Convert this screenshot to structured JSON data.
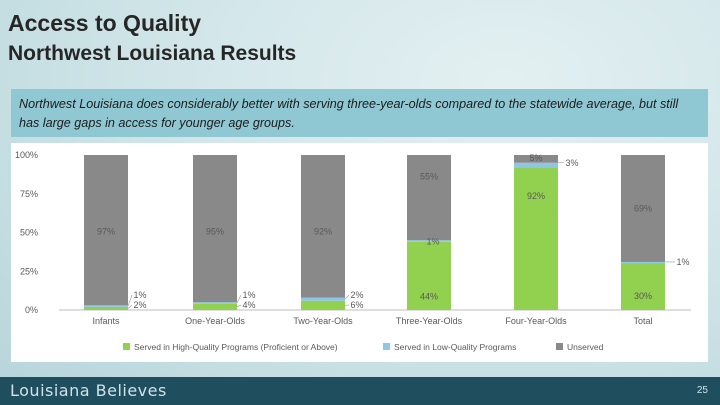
{
  "header": {
    "title": "Access to Quality",
    "subtitle": "Northwest Louisiana Results"
  },
  "caption": "Northwest Louisiana does considerably better with serving three-year-olds compared to the statewide average, but still has large gaps in access for younger age groups.",
  "footer": {
    "logo_text": "Louisiana Believes",
    "page_number": "25"
  },
  "colors": {
    "high_quality": "#92d050",
    "low_quality": "#8dc6e6",
    "unserved": "#898989"
  },
  "chart_data": {
    "type": "bar",
    "stacked": true,
    "categories": [
      "Infants",
      "One-Year-Olds",
      "Two-Year-Olds",
      "Three-Year-Olds",
      "Four-Year-Olds",
      "Total"
    ],
    "series": [
      {
        "name": "Served in High-Quality Programs (Proficient or Above)",
        "values": [
          2,
          4,
          6,
          44,
          92,
          30
        ],
        "labels": [
          "2%",
          "4%",
          "6%",
          "44%",
          "92%",
          "30%"
        ]
      },
      {
        "name": "Served in Low-Quality Programs",
        "values": [
          1,
          1,
          2,
          1,
          3,
          1
        ],
        "labels": [
          "1%",
          "1%",
          "2%",
          "1%",
          "3%",
          "1%"
        ]
      },
      {
        "name": "Unserved",
        "values": [
          97,
          95,
          92,
          55,
          5,
          69
        ],
        "labels": [
          "97%",
          "95%",
          "92%",
          "55%",
          "5%",
          "69%"
        ]
      }
    ],
    "y_ticks": [
      "0%",
      "25%",
      "50%",
      "75%",
      "100%"
    ],
    "ylim": [
      0,
      100
    ],
    "legend_position": "bottom",
    "grid": false
  }
}
